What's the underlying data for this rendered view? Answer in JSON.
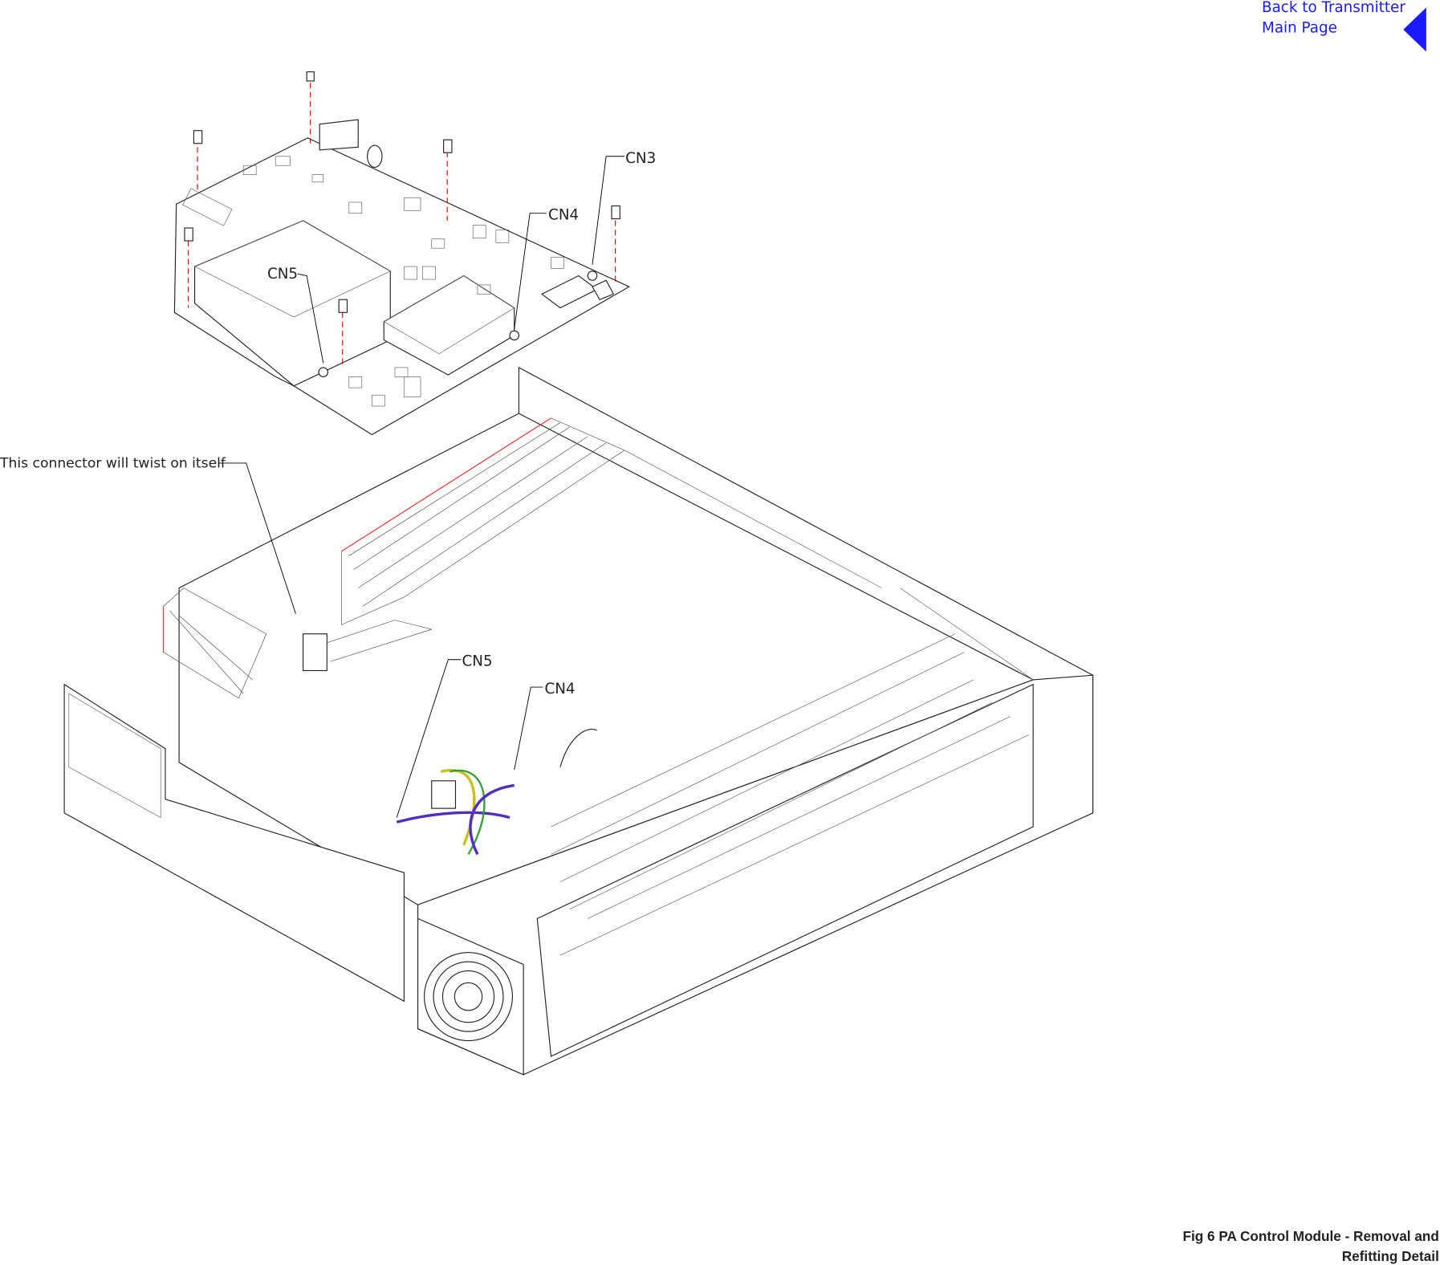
{
  "back_link": [
    "Back to Transmitter",
    "Main Page"
  ],
  "callouts": {
    "board_cn3": "CN3",
    "board_cn4": "CN4",
    "board_cn5": "CN5",
    "twist_note": "This connector will twist on itself",
    "chassis_cn5": "CN5",
    "chassis_cn4": "CN4"
  },
  "caption": [
    "Fig 6  PA Control Module - Removal and",
    "Refitting Detail"
  ]
}
